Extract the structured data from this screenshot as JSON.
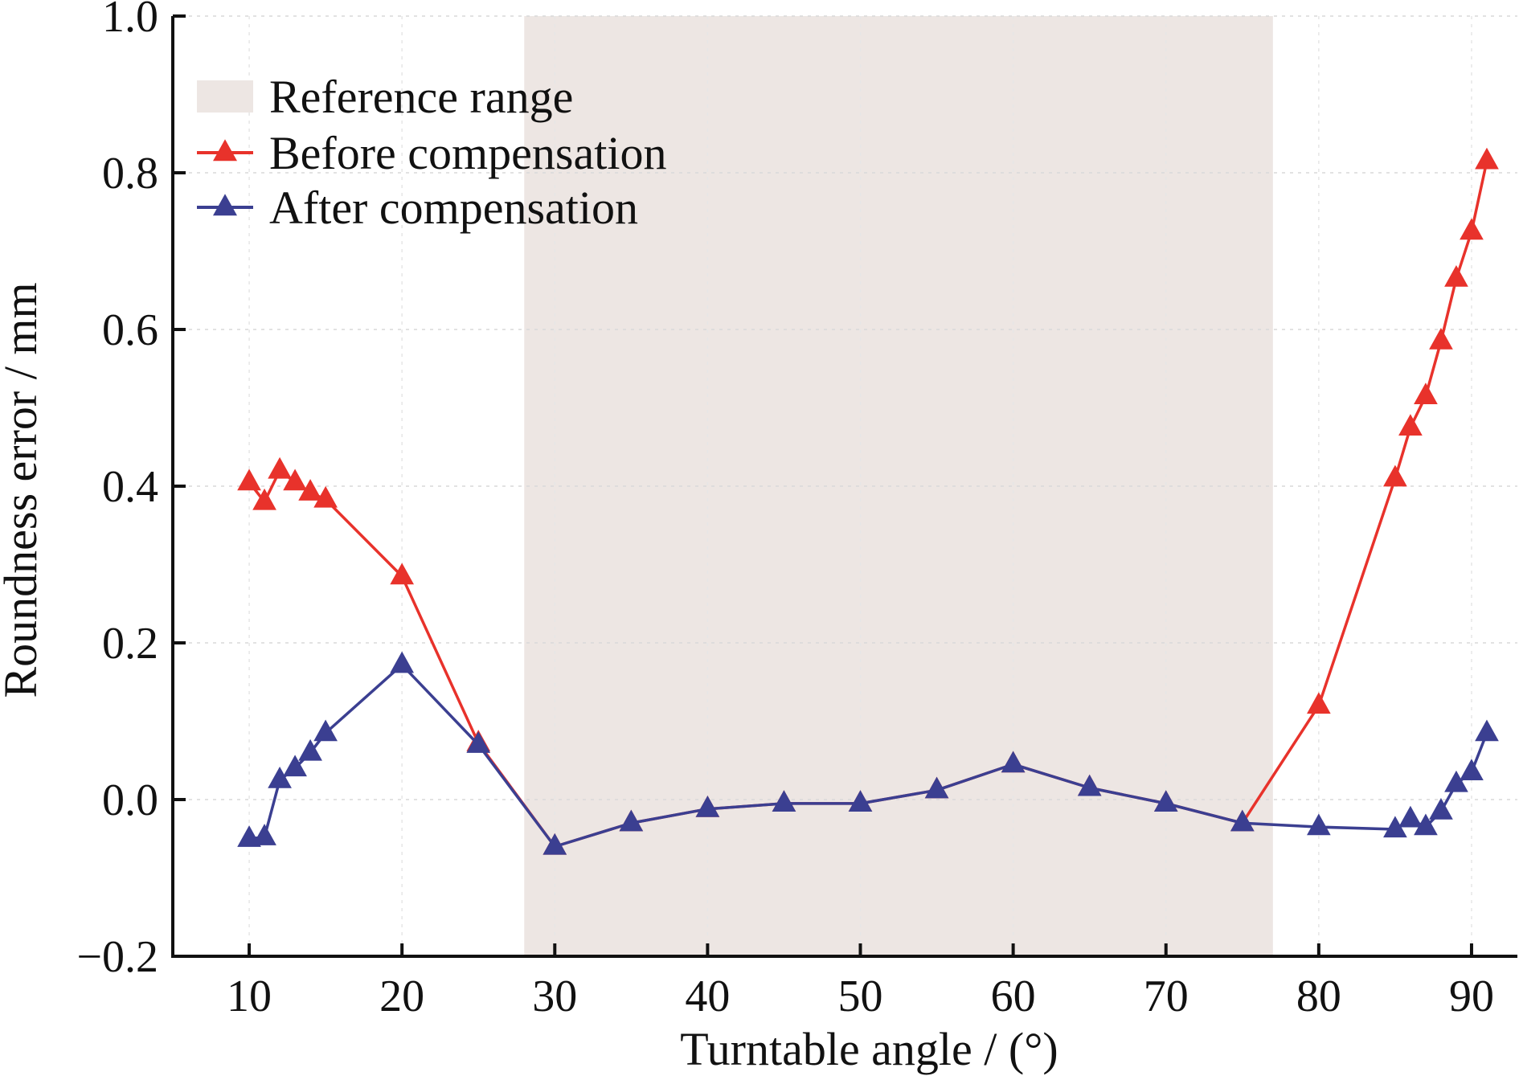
{
  "chart_data": {
    "type": "line",
    "title": "",
    "xlabel": "Turntable angle / (°)",
    "ylabel": "Roundness error / mm",
    "xlim": [
      5,
      93
    ],
    "ylim": [
      -0.2,
      1.0
    ],
    "xticks": [
      10,
      20,
      30,
      40,
      50,
      60,
      70,
      80,
      90
    ],
    "xtick_labels": [
      "10",
      "20",
      "30",
      "40",
      "50",
      "60",
      "70",
      "80",
      "90"
    ],
    "yticks": [
      -0.2,
      0.0,
      0.2,
      0.4,
      0.6,
      0.8,
      1.0
    ],
    "ytick_labels": [
      "−0.2",
      "0.0",
      "0.2",
      "0.4",
      "0.6",
      "0.8",
      "1.0"
    ],
    "grid": true,
    "legend_position": "top-left",
    "reference_range": {
      "name": "Reference range",
      "x": [
        28,
        77
      ],
      "color": "#ede6e3"
    },
    "series": [
      {
        "name": "Before compensation",
        "color": "#e8322b",
        "marker": "triangle",
        "x": [
          10,
          11,
          12,
          13,
          14,
          15,
          20,
          25,
          30,
          35,
          40,
          45,
          50,
          55,
          60,
          65,
          70,
          75,
          80,
          85,
          86,
          87,
          88,
          89,
          90,
          91
        ],
        "y": [
          0.405,
          0.38,
          0.42,
          0.405,
          0.392,
          0.383,
          0.285,
          0.072,
          -0.06,
          -0.03,
          -0.012,
          -0.005,
          -0.005,
          0.012,
          0.045,
          0.015,
          -0.005,
          -0.03,
          0.12,
          0.41,
          0.475,
          0.515,
          0.585,
          0.665,
          0.725,
          0.815
        ]
      },
      {
        "name": "After compensation",
        "color": "#3b3f91",
        "marker": "triangle",
        "x": [
          10,
          11,
          12,
          13,
          14,
          15,
          20,
          25,
          30,
          35,
          40,
          45,
          50,
          55,
          60,
          65,
          70,
          75,
          80,
          85,
          86,
          87,
          88,
          89,
          90,
          91
        ],
        "y": [
          -0.05,
          -0.048,
          0.025,
          0.04,
          0.06,
          0.085,
          0.172,
          0.07,
          -0.06,
          -0.03,
          -0.012,
          -0.005,
          -0.005,
          0.012,
          0.045,
          0.015,
          -0.005,
          -0.03,
          -0.035,
          -0.038,
          -0.025,
          -0.035,
          -0.015,
          0.02,
          0.035,
          0.085
        ]
      }
    ]
  }
}
